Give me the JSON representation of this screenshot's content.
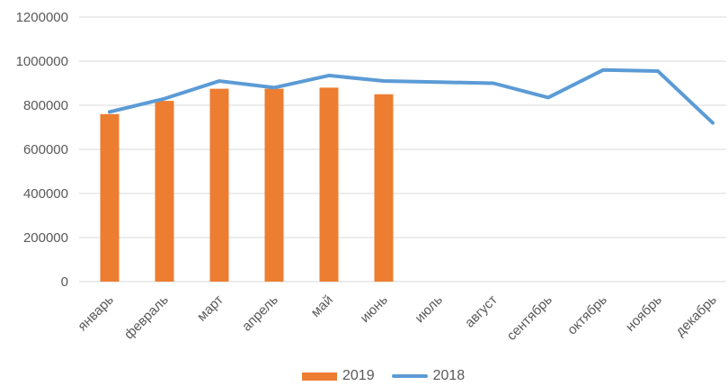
{
  "chart_data": {
    "type": "bar",
    "title": "",
    "xlabel": "",
    "ylabel": "",
    "categories": [
      "январь",
      "февраль",
      "март",
      "апрель",
      "май",
      "июнь",
      "июль",
      "август",
      "сентябрь",
      "октябрь",
      "ноябрь",
      "декабрь"
    ],
    "series": [
      {
        "name": "2019",
        "type": "bar",
        "color": "#ED7D31",
        "values": [
          760000,
          820000,
          875000,
          875000,
          880000,
          850000,
          null,
          null,
          null,
          null,
          null,
          null
        ]
      },
      {
        "name": "2018",
        "type": "line",
        "color": "#5B9BD5",
        "values": [
          770000,
          830000,
          910000,
          880000,
          935000,
          910000,
          905000,
          900000,
          835000,
          960000,
          955000,
          720000
        ]
      }
    ],
    "ylim": [
      0,
      1200000
    ],
    "ytick_step": 200000,
    "ytick_labels": [
      "0",
      "200000",
      "400000",
      "600000",
      "800000",
      "1000000",
      "1200000"
    ],
    "grid": true,
    "legend_position": "bottom",
    "colors": {
      "gridline": "#D9D9D9",
      "text": "#595959",
      "background": "#FFFFFF"
    }
  }
}
